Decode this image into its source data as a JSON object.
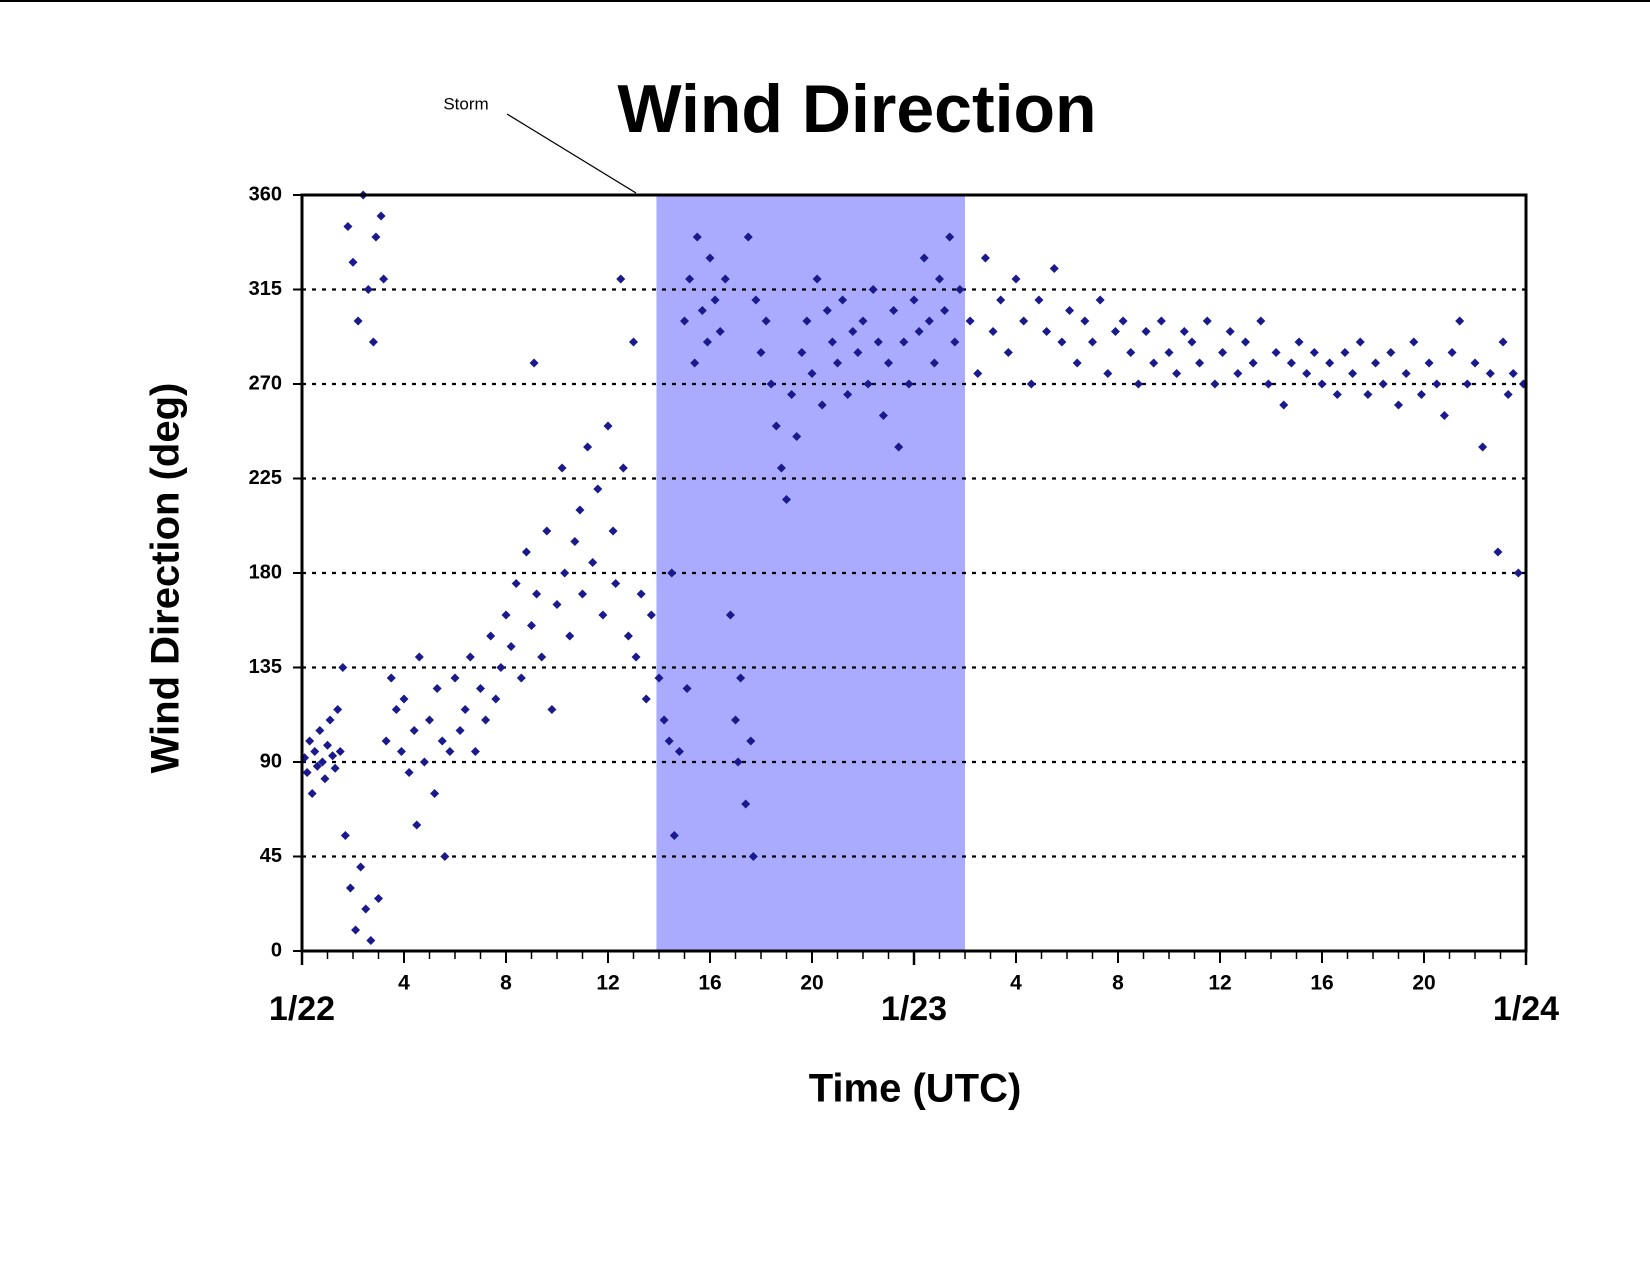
{
  "chart_data": {
    "type": "scatter",
    "title": "Wind Direction",
    "x_label": "Time (UTC)",
    "y_label": "Wind Direction (deg)",
    "color": "#1a1a8c",
    "xlim": [
      0,
      48
    ],
    "ylim": [
      0,
      360
    ],
    "yticks": [
      0,
      45,
      90,
      135,
      180,
      225,
      270,
      315,
      360
    ],
    "xticks": [
      4,
      8,
      12,
      16,
      20,
      {
        "value": 28,
        "label": "4"
      },
      {
        "value": 32,
        "label": "8"
      },
      {
        "value": 36,
        "label": "12"
      },
      {
        "value": 40,
        "label": "16"
      },
      {
        "value": 44,
        "label": "20"
      }
    ],
    "date_ticks": [
      {
        "value": 0,
        "label": "1/22"
      },
      {
        "value": 24,
        "label": "1/23"
      },
      {
        "value": 48,
        "label": "1/24"
      }
    ],
    "minor_tick_step": 1,
    "grid": true,
    "shaded_region": {
      "label": "Storm",
      "x": [
        13.9,
        26.0
      ],
      "color": "#aaaaff"
    },
    "x": [
      0.1,
      0.2,
      0.3,
      0.4,
      0.5,
      0.6,
      0.7,
      0.8,
      0.9,
      1.0,
      1.1,
      1.2,
      1.3,
      1.4,
      1.5,
      1.6,
      1.7,
      1.8,
      1.9,
      2.0,
      2.1,
      2.2,
      2.3,
      2.4,
      2.5,
      2.6,
      2.7,
      2.8,
      2.9,
      3.0,
      3.1,
      3.2,
      3.3,
      3.5,
      3.7,
      3.9,
      4.0,
      4.2,
      4.4,
      4.5,
      4.6,
      4.8,
      5.0,
      5.2,
      5.3,
      5.5,
      5.6,
      5.8,
      6.0,
      6.2,
      6.4,
      6.6,
      6.8,
      7.0,
      7.2,
      7.4,
      7.6,
      7.8,
      8.0,
      8.2,
      8.4,
      8.6,
      8.8,
      9.0,
      9.1,
      9.2,
      9.4,
      9.6,
      9.8,
      10.0,
      10.2,
      10.3,
      10.5,
      10.7,
      10.9,
      11.0,
      11.2,
      11.4,
      11.6,
      11.8,
      12.0,
      12.2,
      12.3,
      12.5,
      12.6,
      12.8,
      13.0,
      13.1,
      13.3,
      13.5,
      13.7,
      14.0,
      14.2,
      14.4,
      14.5,
      14.6,
      14.8,
      15.0,
      15.1,
      15.2,
      15.4,
      15.5,
      15.7,
      15.9,
      16.0,
      16.2,
      16.4,
      16.6,
      16.8,
      17.0,
      17.1,
      17.2,
      17.4,
      17.5,
      17.6,
      17.7,
      17.8,
      18.0,
      18.2,
      18.4,
      18.6,
      18.8,
      19.0,
      19.2,
      19.4,
      19.6,
      19.8,
      20.0,
      20.2,
      20.4,
      20.6,
      20.8,
      21.0,
      21.2,
      21.4,
      21.6,
      21.8,
      22.0,
      22.2,
      22.4,
      22.6,
      22.8,
      23.0,
      23.2,
      23.4,
      23.6,
      23.8,
      24.0,
      24.2,
      24.4,
      24.6,
      24.8,
      25.0,
      25.2,
      25.4,
      25.6,
      25.8,
      26.2,
      26.5,
      26.8,
      27.1,
      27.4,
      27.7,
      28.0,
      28.3,
      28.6,
      28.9,
      29.2,
      29.5,
      29.8,
      30.1,
      30.4,
      30.7,
      31.0,
      31.3,
      31.6,
      31.9,
      32.2,
      32.5,
      32.8,
      33.1,
      33.4,
      33.7,
      34.0,
      34.3,
      34.6,
      34.9,
      35.2,
      35.5,
      35.8,
      36.1,
      36.4,
      36.7,
      37.0,
      37.3,
      37.6,
      37.9,
      38.2,
      38.5,
      38.8,
      39.1,
      39.4,
      39.7,
      40.0,
      40.3,
      40.6,
      40.9,
      41.2,
      41.5,
      41.8,
      42.1,
      42.4,
      42.7,
      43.0,
      43.3,
      43.6,
      43.9,
      44.2,
      44.5,
      44.8,
      45.1,
      45.4,
      45.7,
      46.0,
      46.3,
      46.6,
      46.9,
      47.1,
      47.3,
      47.5,
      47.7,
      47.9
    ],
    "values": [
      92,
      85,
      100,
      75,
      95,
      88,
      105,
      90,
      82,
      98,
      110,
      93,
      87,
      115,
      95,
      135,
      55,
      345,
      30,
      328,
      10,
      300,
      40,
      360,
      20,
      315,
      5,
      290,
      340,
      25,
      350,
      320,
      100,
      130,
      115,
      95,
      120,
      85,
      105,
      60,
      140,
      90,
      110,
      75,
      125,
      100,
      45,
      95,
      130,
      105,
      115,
      140,
      95,
      125,
      110,
      150,
      120,
      135,
      160,
      145,
      175,
      130,
      190,
      155,
      280,
      170,
      140,
      200,
      115,
      165,
      230,
      180,
      150,
      195,
      210,
      170,
      240,
      185,
      220,
      160,
      250,
      200,
      175,
      320,
      230,
      150,
      290,
      140,
      170,
      120,
      160,
      130,
      110,
      100,
      180,
      55,
      95,
      300,
      125,
      320,
      280,
      340,
      305,
      290,
      330,
      310,
      295,
      320,
      160,
      110,
      90,
      130,
      70,
      340,
      100,
      45,
      310,
      285,
      300,
      270,
      250,
      230,
      215,
      265,
      245,
      285,
      300,
      275,
      320,
      260,
      305,
      290,
      280,
      310,
      265,
      295,
      285,
      300,
      270,
      315,
      290,
      255,
      280,
      305,
      240,
      290,
      270,
      310,
      295,
      330,
      300,
      280,
      320,
      305,
      340,
      290,
      315,
      300,
      275,
      330,
      295,
      310,
      285,
      320,
      300,
      270,
      310,
      295,
      325,
      290,
      305,
      280,
      300,
      290,
      310,
      275,
      295,
      300,
      285,
      270,
      295,
      280,
      300,
      285,
      275,
      295,
      290,
      280,
      300,
      270,
      285,
      295,
      275,
      290,
      280,
      300,
      270,
      285,
      260,
      280,
      290,
      275,
      285,
      270,
      280,
      265,
      285,
      275,
      290,
      265,
      280,
      270,
      285,
      260,
      275,
      290,
      265,
      280,
      270,
      255,
      285,
      300,
      270,
      280,
      240,
      275,
      190,
      290,
      265,
      275,
      180,
      270
    ]
  }
}
